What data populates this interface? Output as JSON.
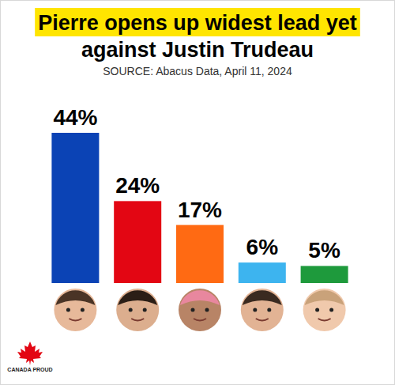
{
  "chart_data": {
    "type": "bar",
    "title": "Pierre opens up widest lead yet against Justin Trudeau",
    "subtitle": "SOURCE: Abacus Data, April 11, 2024",
    "categories": [
      null,
      null,
      null,
      null,
      null
    ],
    "values": [
      44,
      24,
      17,
      6,
      5
    ],
    "value_labels": [
      "44%",
      "24%",
      "17%",
      "6%",
      "5%"
    ],
    "colors": [
      "#0b43b5",
      "#e30613",
      "#ff6a13",
      "#3db4ef",
      "#1e9a3c"
    ],
    "ylim": [
      0,
      44
    ],
    "data_labels": true,
    "tick_labels": false,
    "annotations": [
      "CANADA PROUD"
    ]
  }
}
